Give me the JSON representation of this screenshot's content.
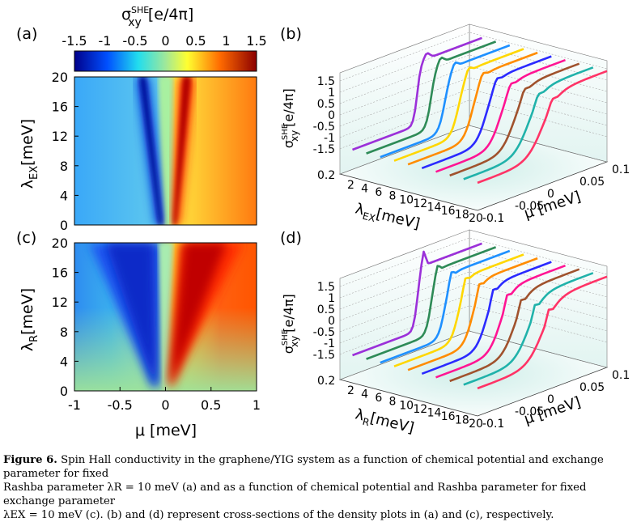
{
  "colorbar": {
    "title_main": "σ",
    "title_sup": "SHE",
    "title_sub": "xy",
    "title_unit": "[e/4π]",
    "ticks": [
      "-1.5",
      "-1",
      "-0.5",
      "0",
      "0.5",
      "1",
      "1.5"
    ]
  },
  "panel_a": {
    "label": "(a)",
    "ylabel_main": "λ",
    "ylabel_sub": "EX",
    "ylabel_unit": "[meV]",
    "yticks": [
      "20",
      "16",
      "12",
      "8",
      "4",
      "0"
    ]
  },
  "panel_c": {
    "label": "(c)",
    "ylabel_main": "λ",
    "ylabel_sub": "R",
    "ylabel_unit": "[meV]",
    "yticks": [
      "20",
      "16",
      "12",
      "8",
      "4",
      "0"
    ],
    "xticks": [
      "-1",
      "-0.5",
      "0",
      "0.5",
      "1"
    ],
    "xlabel": "μ [meV]"
  },
  "panel_b": {
    "label": "(b)",
    "zlabel_main": "σ",
    "zlabel_sup": "SHE",
    "zlabel_sub": "xy",
    "zlabel_unit": "[e/4π]",
    "zticks": [
      "1.5",
      "1",
      "0.5",
      "0",
      "-0.5",
      "-1",
      "-1.5"
    ],
    "lambda_ticks": [
      "2",
      "4",
      "6",
      "8",
      "10",
      "12",
      "14",
      "16",
      "18",
      "20"
    ],
    "lambda_start": "0.2",
    "lambda_label_main": "λ",
    "lambda_label_sub": "EX",
    "lambda_label_unit": "[meV]",
    "mu_ticks": [
      "0.1",
      "0.05",
      "0",
      "-0.05",
      "-0.1"
    ],
    "mu_label": "μ [meV]"
  },
  "panel_d": {
    "label": "(d)",
    "zlabel_main": "σ",
    "zlabel_sup": "SHE",
    "zlabel_sub": "xy",
    "zlabel_unit": "[e/4π]",
    "zticks": [
      "1.5",
      "1",
      "0.5",
      "0",
      "-0.5",
      "-1",
      "-1.5"
    ],
    "lambda_ticks": [
      "2",
      "4",
      "6",
      "8",
      "10",
      "12",
      "14",
      "16",
      "18",
      "20"
    ],
    "lambda_start": "0.2",
    "lambda_label_main": "λ",
    "lambda_label_sub": "R",
    "lambda_label_unit": "[meV]",
    "mu_ticks": [
      "0.1",
      "0.05",
      "0",
      "-0.05",
      "-0.1"
    ],
    "mu_label": "μ [meV]"
  },
  "series_colors": [
    "#9b30d9",
    "#2e8b57",
    "#1e90ff",
    "#ffd700",
    "#ff8c00",
    "#2a2aff",
    "#ff1493",
    "#a0522d",
    "#20b2aa",
    "#ff3366"
  ],
  "caption": {
    "label": "Figure 6.",
    "line1": "Spin Hall conductivity in the graphene/YIG system as a function of chemical potential and exchange parameter for fixed",
    "line2": "Rashba parameter λR = 10 meV (a) and as a function of chemical potential and Rashba parameter for fixed exchange parameter",
    "line3": "λEX = 10 meV (c). (b) and (d) represent cross-sections of the density plots in (a) and (c), respectively."
  }
}
